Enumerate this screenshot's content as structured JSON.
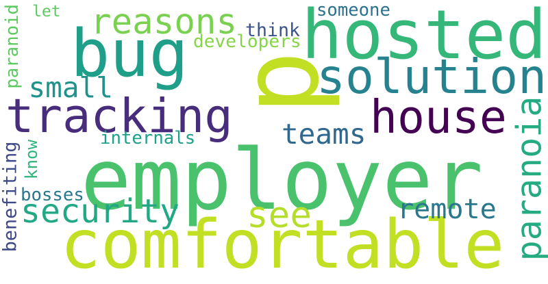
{
  "word_cloud": {
    "words": [
      {
        "text": "p",
        "color": "#c2df23"
      },
      {
        "text": "employer",
        "color": "#4ac16d"
      },
      {
        "text": "comfortable",
        "color": "#c2df23"
      },
      {
        "text": "hosted",
        "color": "#35b779"
      },
      {
        "text": "bug",
        "color": "#1f9e89"
      },
      {
        "text": "tracking",
        "color": "#472d7b"
      },
      {
        "text": "house",
        "color": "#440154"
      },
      {
        "text": "solution",
        "color": "#26828e"
      },
      {
        "text": "reasons",
        "color": "#7ad151"
      },
      {
        "text": "small",
        "color": "#21918c"
      },
      {
        "text": "security",
        "color": "#22a884"
      },
      {
        "text": "teams",
        "color": "#31688e"
      },
      {
        "text": "remote",
        "color": "#2a788e"
      },
      {
        "text": "see",
        "color": "#b5de2b"
      },
      {
        "text": "paranoia",
        "color": "#25ab82"
      },
      {
        "text": "someone",
        "color": "#2c728e"
      },
      {
        "text": "let",
        "color": "#5ec962"
      },
      {
        "text": "think",
        "color": "#3b528b"
      },
      {
        "text": "developers",
        "color": "#86d549"
      },
      {
        "text": "paranoid",
        "color": "#5ec962"
      },
      {
        "text": "internals",
        "color": "#1fa187"
      },
      {
        "text": "know",
        "color": "#2fb47c"
      },
      {
        "text": "benefiting",
        "color": "#3e4989"
      },
      {
        "text": "bosses",
        "color": "#2a788e"
      }
    ]
  }
}
